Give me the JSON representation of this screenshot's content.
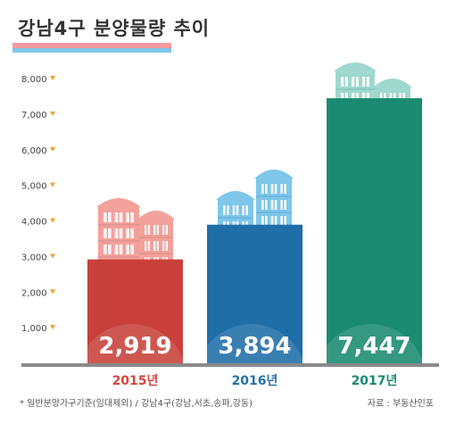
{
  "title": "강남4구 분양물량 추이",
  "footnote": "* 일반분양가구기준(임대제외) / 강남4구(강남,서초,송파,강동)",
  "source": "자료 : 부동산인포",
  "chart_data": {
    "type": "bar",
    "title": "강남4구 분양물량 추이",
    "categories": [
      "2015년",
      "2016년",
      "2017년"
    ],
    "values": [
      2919,
      3894,
      7447
    ],
    "value_labels": [
      "2,919",
      "3,894",
      "7,447"
    ],
    "y_ticks": [
      "1,000",
      "2,000",
      "3,000",
      "4,000",
      "5,000",
      "6,000",
      "7,000",
      "8,000"
    ],
    "ylim": [
      0,
      8500
    ],
    "grid": false,
    "colors": {
      "bar_2015": "#c9403a",
      "bar_2016": "#1f6ea8",
      "bar_2017": "#1a8a70",
      "label_2015": "#d9453f",
      "label_2016": "#2471a8",
      "label_2017": "#1a8a70",
      "tick_arrow": "#f0a030",
      "baseline": "#888888"
    },
    "icons": [
      "building-icon-pink",
      "building-icon-blue",
      "building-icon-mint"
    ]
  }
}
